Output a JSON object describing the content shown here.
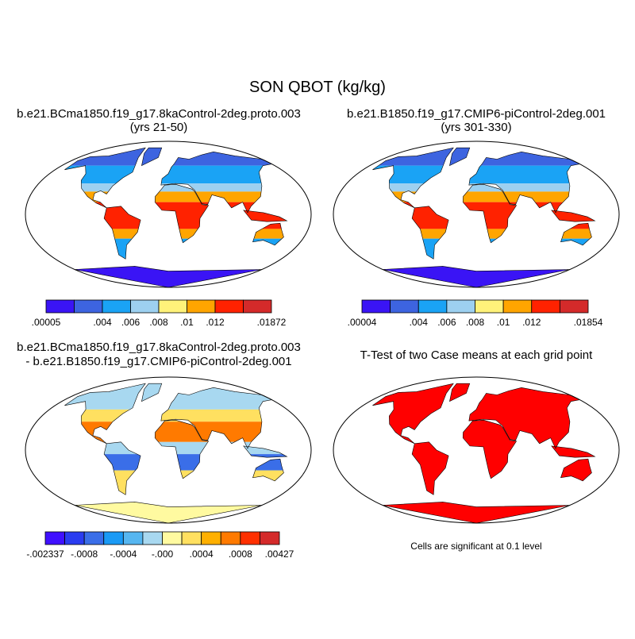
{
  "title": "SON QBOT (kg/kg)",
  "panels": [
    {
      "title": [
        "b.e21.BCma1850.f19_g17.8kaControl-2deg.proto.003",
        "(yrs 21-50)"
      ],
      "colorbar": {
        "colors": [
          "#3a14f5",
          "#3d64e0",
          "#1aa3f5",
          "#9dd0f0",
          "#fff27a",
          "#ffa500",
          "#ff2200",
          "#d42a2a"
        ],
        "labels": [
          ".00005",
          null,
          ".004",
          ".006",
          ".008",
          ".01",
          ".012",
          null,
          ".01872"
        ]
      }
    },
    {
      "title": [
        "b.e21.B1850.f19_g17.CMIP6-piControl-2deg.001",
        "(yrs 301-330)"
      ],
      "colorbar": {
        "colors": [
          "#3a14f5",
          "#3d64e0",
          "#1aa3f5",
          "#9dd0f0",
          "#fff27a",
          "#ffa500",
          "#ff2200",
          "#d42a2a"
        ],
        "labels": [
          ".00004",
          null,
          ".004",
          ".006",
          ".008",
          ".01",
          ".012",
          null,
          ".01854"
        ]
      }
    },
    {
      "title": [
        "b.e21.BCma1850.f19_g17.8kaControl-2deg.proto.003",
        "- b.e21.B1850.f19_g17.CMIP6-piControl-2deg.001"
      ],
      "colorbar": {
        "colors": [
          "#4010ff",
          "#2a3cf0",
          "#3a6ee8",
          "#1a9af5",
          "#56b6f0",
          "#a8d8f0",
          "#fffaa0",
          "#ffe060",
          "#ffb000",
          "#ff7a00",
          "#ff3000",
          "#d42a2a"
        ],
        "labels": [
          "-.002337",
          null,
          "-.0008",
          null,
          "-.0004",
          null,
          "-.000",
          null,
          ".0004",
          null,
          ".0008",
          null,
          ".00427"
        ]
      }
    },
    {
      "title": [
        "T-Test of two Case means at each grid point"
      ],
      "note": "Cells are significant at 0.1 level"
    }
  ]
}
